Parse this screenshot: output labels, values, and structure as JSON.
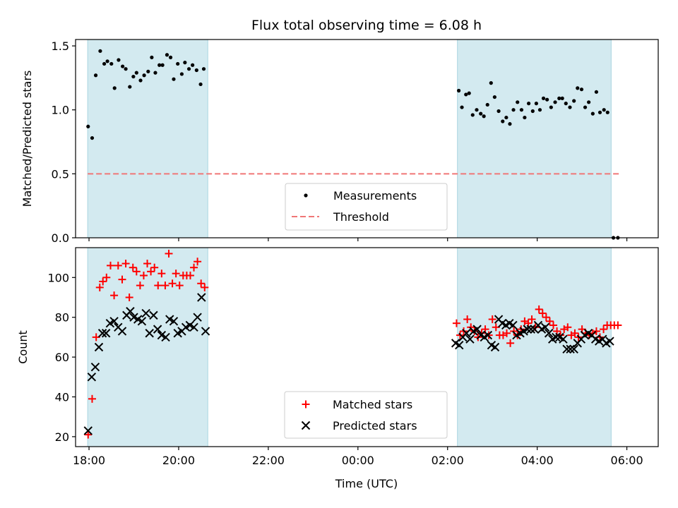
{
  "chart_data": {
    "title": "Flux total observing time = 6.08 h",
    "xlabel": "Time (UTC)",
    "x_unit": "hours after 18:00 UTC",
    "xlim": [
      -0.3,
      12.7
    ],
    "xticks": [
      {
        "value": 0,
        "label": "18:00"
      },
      {
        "value": 2,
        "label": "20:00"
      },
      {
        "value": 4,
        "label": "22:00"
      },
      {
        "value": 6,
        "label": "00:00"
      },
      {
        "value": 8,
        "label": "02:00"
      },
      {
        "value": 10,
        "label": "04:00"
      },
      {
        "value": 12,
        "label": "06:00"
      }
    ],
    "shaded_intervals": [
      [
        -0.03,
        2.65
      ],
      [
        8.22,
        11.65
      ]
    ],
    "shade_color": "#d3eaf0",
    "top": {
      "type": "scatter",
      "ylabel": "Matched/Predicted stars",
      "ylim": [
        0,
        1.55
      ],
      "yticks": [
        {
          "value": 0,
          "label": "0.0"
        },
        {
          "value": 0.5,
          "label": "0.5"
        },
        {
          "value": 1.0,
          "label": "1.0"
        },
        {
          "value": 1.5,
          "label": "1.5"
        }
      ],
      "threshold": {
        "name": "Threshold",
        "y": 0.5,
        "x": [
          -0.03,
          11.85
        ],
        "color": "#f07676"
      },
      "measurements": {
        "name": "Measurements",
        "color": "#000000",
        "x": [
          -0.02,
          0.07,
          0.15,
          0.25,
          0.34,
          0.41,
          0.5,
          0.57,
          0.66,
          0.75,
          0.82,
          0.91,
          0.99,
          1.06,
          1.15,
          1.23,
          1.32,
          1.4,
          1.48,
          1.57,
          1.64,
          1.74,
          1.82,
          1.89,
          1.98,
          2.07,
          2.14,
          2.23,
          2.31,
          2.4,
          2.49,
          2.56,
          8.25,
          8.32,
          8.41,
          8.48,
          8.56,
          8.65,
          8.74,
          8.81,
          8.89,
          8.97,
          9.05,
          9.14,
          9.23,
          9.31,
          9.39,
          9.47,
          9.56,
          9.65,
          9.72,
          9.81,
          9.9,
          9.98,
          10.06,
          10.14,
          10.22,
          10.31,
          10.4,
          10.49,
          10.56,
          10.64,
          10.73,
          10.82,
          10.9,
          10.99,
          11.07,
          11.15,
          11.24,
          11.32,
          11.4,
          11.49,
          11.57
        ],
        "y": [
          0.87,
          0.78,
          1.27,
          1.46,
          1.36,
          1.38,
          1.36,
          1.17,
          1.39,
          1.34,
          1.32,
          1.18,
          1.26,
          1.29,
          1.23,
          1.27,
          1.3,
          1.41,
          1.29,
          1.35,
          1.35,
          1.43,
          1.41,
          1.24,
          1.36,
          1.28,
          1.37,
          1.32,
          1.35,
          1.31,
          1.2,
          1.32,
          1.15,
          1.02,
          1.12,
          1.13,
          0.96,
          1.0,
          0.97,
          0.95,
          1.04,
          1.21,
          1.1,
          0.99,
          0.91,
          0.94,
          0.89,
          1.0,
          1.06,
          1.0,
          0.94,
          1.05,
          0.99,
          1.05,
          1.0,
          1.09,
          1.08,
          1.02,
          1.06,
          1.09,
          1.09,
          1.05,
          1.02,
          1.07,
          1.17,
          1.16,
          1.02,
          1.06,
          0.97,
          1.14,
          0.98,
          1.0,
          0.98
        ],
        "extra_points": {
          "x": [
            11.7,
            11.8
          ],
          "y": [
            0.0,
            0.0
          ]
        }
      }
    },
    "bottom": {
      "type": "scatter",
      "ylabel": "Count",
      "ylim": [
        15,
        115
      ],
      "yticks": [
        {
          "value": 20,
          "label": "20"
        },
        {
          "value": 40,
          "label": "40"
        },
        {
          "value": 60,
          "label": "60"
        },
        {
          "value": 80,
          "label": "80"
        },
        {
          "value": 100,
          "label": "100"
        }
      ],
      "series": [
        {
          "name": "Matched stars",
          "marker": "plus",
          "color": "#ff0000",
          "x": [
            -0.02,
            0.07,
            0.16,
            0.24,
            0.31,
            0.39,
            0.48,
            0.56,
            0.65,
            0.74,
            0.82,
            0.9,
            0.98,
            1.06,
            1.14,
            1.22,
            1.3,
            1.38,
            1.46,
            1.54,
            1.62,
            1.7,
            1.78,
            1.86,
            1.94,
            2.02,
            2.1,
            2.18,
            2.26,
            2.34,
            2.42,
            2.5,
            2.58,
            8.2,
            8.28,
            8.36,
            8.44,
            8.52,
            8.6,
            8.68,
            8.76,
            8.84,
            8.92,
            9.0,
            9.08,
            9.16,
            9.24,
            9.32,
            9.4,
            9.48,
            9.56,
            9.64,
            9.72,
            9.8,
            9.88,
            9.96,
            10.04,
            10.12,
            10.2,
            10.28,
            10.36,
            10.44,
            10.52,
            10.6,
            10.68,
            10.76,
            10.84,
            10.92,
            11.0,
            11.08,
            11.16,
            11.24,
            11.32,
            11.4,
            11.48,
            11.56,
            11.64,
            11.72,
            11.8
          ],
          "y": [
            21,
            39,
            70,
            95,
            98,
            100,
            106,
            91,
            106,
            99,
            107,
            90,
            105,
            103,
            96,
            101,
            107,
            103,
            105,
            96,
            102,
            96,
            112,
            97,
            102,
            96,
            101,
            101,
            101,
            105,
            108,
            97,
            95,
            77,
            71,
            73,
            79,
            75,
            73,
            70,
            72,
            74,
            71,
            79,
            75,
            71,
            71,
            72,
            67,
            73,
            71,
            74,
            78,
            77,
            79,
            75,
            84,
            82,
            80,
            78,
            76,
            73,
            71,
            74,
            75,
            71,
            72,
            70,
            74,
            72,
            71,
            72,
            73,
            70,
            74,
            76,
            76,
            76,
            76
          ]
        },
        {
          "name": "Predicted stars",
          "marker": "x",
          "color": "#000000",
          "x": [
            -0.02,
            0.06,
            0.14,
            0.22,
            0.3,
            0.38,
            0.47,
            0.56,
            0.65,
            0.74,
            0.84,
            0.92,
            1.0,
            1.09,
            1.18,
            1.27,
            1.35,
            1.44,
            1.53,
            1.62,
            1.71,
            1.8,
            1.89,
            1.98,
            2.07,
            2.16,
            2.25,
            2.34,
            2.42,
            2.51,
            2.6,
            8.18,
            8.26,
            8.34,
            8.42,
            8.5,
            8.58,
            8.66,
            8.74,
            8.82,
            8.9,
            8.98,
            9.06,
            9.14,
            9.22,
            9.3,
            9.38,
            9.46,
            9.54,
            9.62,
            9.7,
            9.78,
            9.86,
            9.94,
            10.02,
            10.1,
            10.18,
            10.26,
            10.34,
            10.42,
            10.5,
            10.58,
            10.66,
            10.74,
            10.82,
            10.9,
            10.98,
            11.06,
            11.14,
            11.22,
            11.3,
            11.38,
            11.46,
            11.54,
            11.62
          ],
          "y": [
            23,
            50,
            55,
            65,
            72,
            72,
            77,
            78,
            75,
            73,
            81,
            83,
            80,
            79,
            78,
            82,
            72,
            81,
            74,
            71,
            70,
            79,
            78,
            72,
            73,
            75,
            76,
            75,
            80,
            90,
            73,
            67,
            66,
            70,
            72,
            69,
            73,
            74,
            71,
            70,
            71,
            66,
            65,
            79,
            77,
            76,
            77,
            76,
            71,
            72,
            73,
            74,
            74,
            74,
            76,
            74,
            75,
            72,
            69,
            70,
            70,
            69,
            64,
            64,
            64,
            67,
            69,
            71,
            72,
            71,
            69,
            68,
            69,
            67,
            68
          ]
        }
      ]
    },
    "legend_top": {
      "placement": "lower-center",
      "entries": [
        "Measurements",
        "Threshold"
      ]
    },
    "legend_bottom": {
      "placement": "lower-center",
      "entries": [
        "Matched stars",
        "Predicted stars"
      ]
    }
  }
}
